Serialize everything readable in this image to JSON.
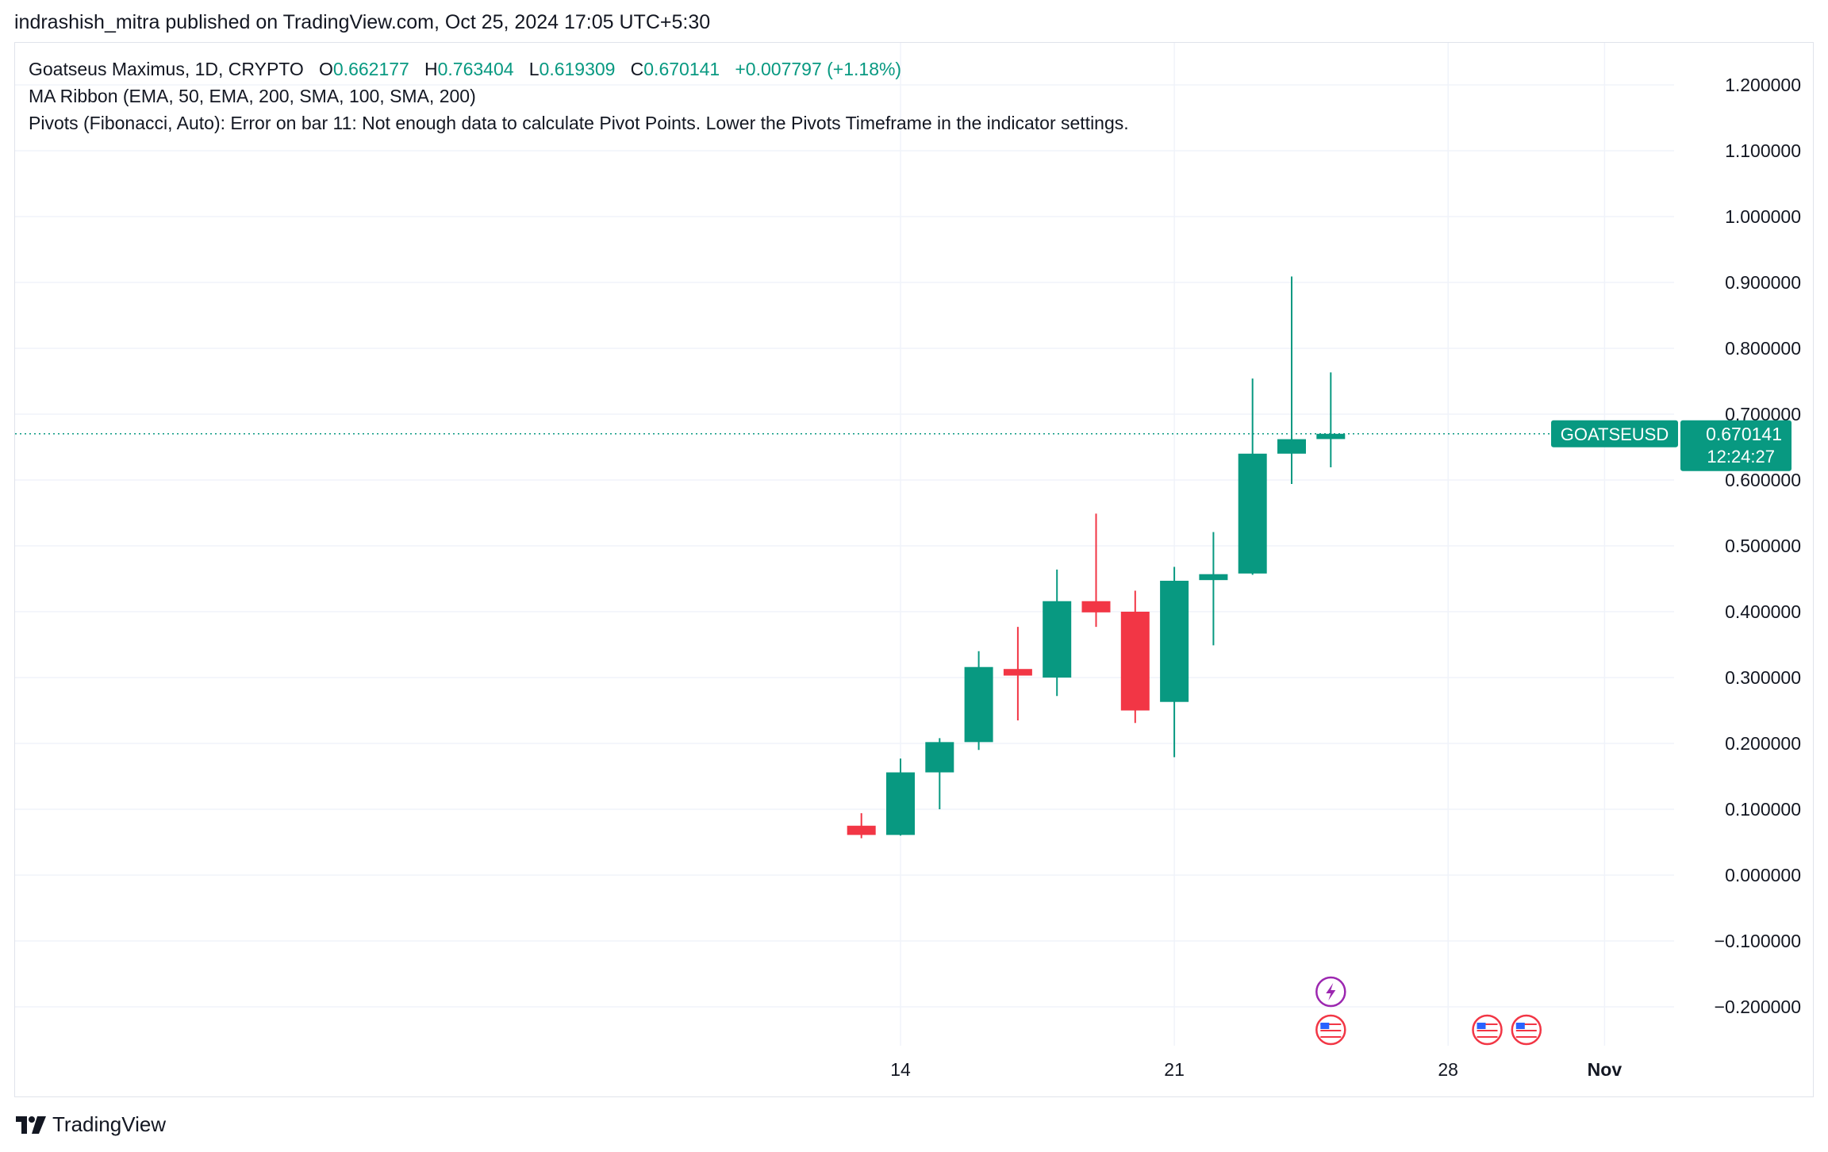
{
  "published_line": "indrashish_mitra published on TradingView.com, Oct 25, 2024 17:05 UTC+5:30",
  "legend": {
    "symbol_info": "Goatseus Maximus, 1D, CRYPTO",
    "o_label": "O",
    "o_value": "0.662177",
    "h_label": "H",
    "h_value": "0.763404",
    "l_label": "L",
    "l_value": "0.619309",
    "c_label": "C",
    "c_value": "0.670141",
    "change": "+0.007797 (+1.18%)",
    "indicator_1": "MA Ribbon (EMA, 50, EMA, 200, SMA, 100, SMA, 200)",
    "indicator_2": "Pivots (Fibonacci, Auto): Error on bar 11: Not enough data to calculate Pivot Points. Lower the Pivots Timeframe in the indicator settings."
  },
  "brand": "TradingView",
  "colors": {
    "up": "#089981",
    "down": "#f23645",
    "grid": "#f0f3fa",
    "axis_text": "#131722",
    "price_line": "#089981",
    "event_purple": "#9c27b0",
    "event_red": "#f23645"
  },
  "chart_data": {
    "type": "candlestick",
    "symbol": "GOATSEUSD",
    "interval": "1D",
    "last_price_label": "0.670141",
    "countdown_label": "12:24:27",
    "ylim": [
      -0.26,
      1.24
    ],
    "y_ticks": [
      1.2,
      1.1,
      1.0,
      0.9,
      0.8,
      0.7,
      0.6,
      0.5,
      0.4,
      0.3,
      0.2,
      0.1,
      0.0,
      -0.1,
      -0.2
    ],
    "y_tick_labels": [
      "1.200000",
      "1.100000",
      "1.000000",
      "0.900000",
      "0.800000",
      "0.700000",
      "0.600000",
      "0.500000",
      "0.400000",
      "0.300000",
      "0.200000",
      "0.100000",
      "0.000000",
      "−0.100000",
      "−0.200000"
    ],
    "x_ticks": [
      {
        "day": 14,
        "label": "14"
      },
      {
        "day": 21,
        "label": "21"
      },
      {
        "day": 28,
        "label": "28"
      },
      {
        "day": 32,
        "label": "Nov"
      }
    ],
    "x_range_days": [
      -9,
      33.5
    ],
    "grid": true,
    "candles": [
      {
        "date": "2024-10-13",
        "open": 0.075,
        "high": 0.094,
        "low": 0.056,
        "close": 0.061
      },
      {
        "date": "2024-10-14",
        "open": 0.061,
        "high": 0.177,
        "low": 0.06,
        "close": 0.156
      },
      {
        "date": "2024-10-15",
        "open": 0.156,
        "high": 0.208,
        "low": 0.1,
        "close": 0.202
      },
      {
        "date": "2024-10-16",
        "open": 0.202,
        "high": 0.34,
        "low": 0.19,
        "close": 0.316
      },
      {
        "date": "2024-10-17",
        "open": 0.313,
        "high": 0.377,
        "low": 0.235,
        "close": 0.303
      },
      {
        "date": "2024-10-18",
        "open": 0.3,
        "high": 0.464,
        "low": 0.272,
        "close": 0.416
      },
      {
        "date": "2024-10-19",
        "open": 0.416,
        "high": 0.549,
        "low": 0.377,
        "close": 0.399
      },
      {
        "date": "2024-10-20",
        "open": 0.4,
        "high": 0.432,
        "low": 0.231,
        "close": 0.25
      },
      {
        "date": "2024-10-21",
        "open": 0.263,
        "high": 0.468,
        "low": 0.179,
        "close": 0.447
      },
      {
        "date": "2024-10-22",
        "open": 0.448,
        "high": 0.521,
        "low": 0.349,
        "close": 0.457
      },
      {
        "date": "2024-10-23",
        "open": 0.458,
        "high": 0.754,
        "low": 0.456,
        "close": 0.64
      },
      {
        "date": "2024-10-24",
        "open": 0.64,
        "high": 0.909,
        "low": 0.594,
        "close": 0.662
      },
      {
        "date": "2024-10-25",
        "open": 0.662177,
        "high": 0.763404,
        "low": 0.619309,
        "close": 0.670141
      }
    ],
    "events": [
      {
        "day": 25,
        "icon": "lightning-icon"
      },
      {
        "day": 25,
        "icon": "us-flag-icon"
      },
      {
        "day": 29,
        "icon": "us-flag-icon"
      },
      {
        "day": 30,
        "icon": "us-flag-icon"
      }
    ]
  }
}
